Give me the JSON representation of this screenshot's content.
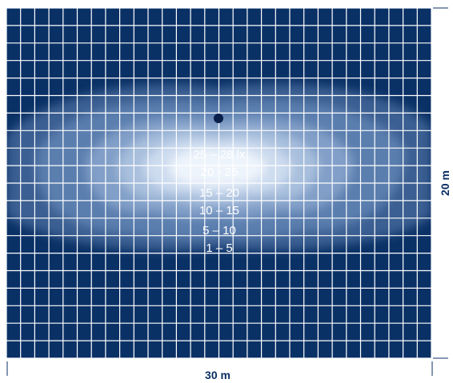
{
  "plan": {
    "width_label": "30 m",
    "height_label": "20 m"
  },
  "zones": [
    {
      "label": "25 – 28 lx"
    },
    {
      "label": "20 - 25"
    },
    {
      "label": "15 – 20"
    },
    {
      "label": "10 – 15"
    },
    {
      "label": "5 – 10"
    },
    {
      "label": "1 – 5"
    }
  ],
  "colors": {
    "background": "#0a3166",
    "grid": "#ffffff",
    "luminaire": "#0a1f4a",
    "dimension_text": "#0b2f63"
  }
}
